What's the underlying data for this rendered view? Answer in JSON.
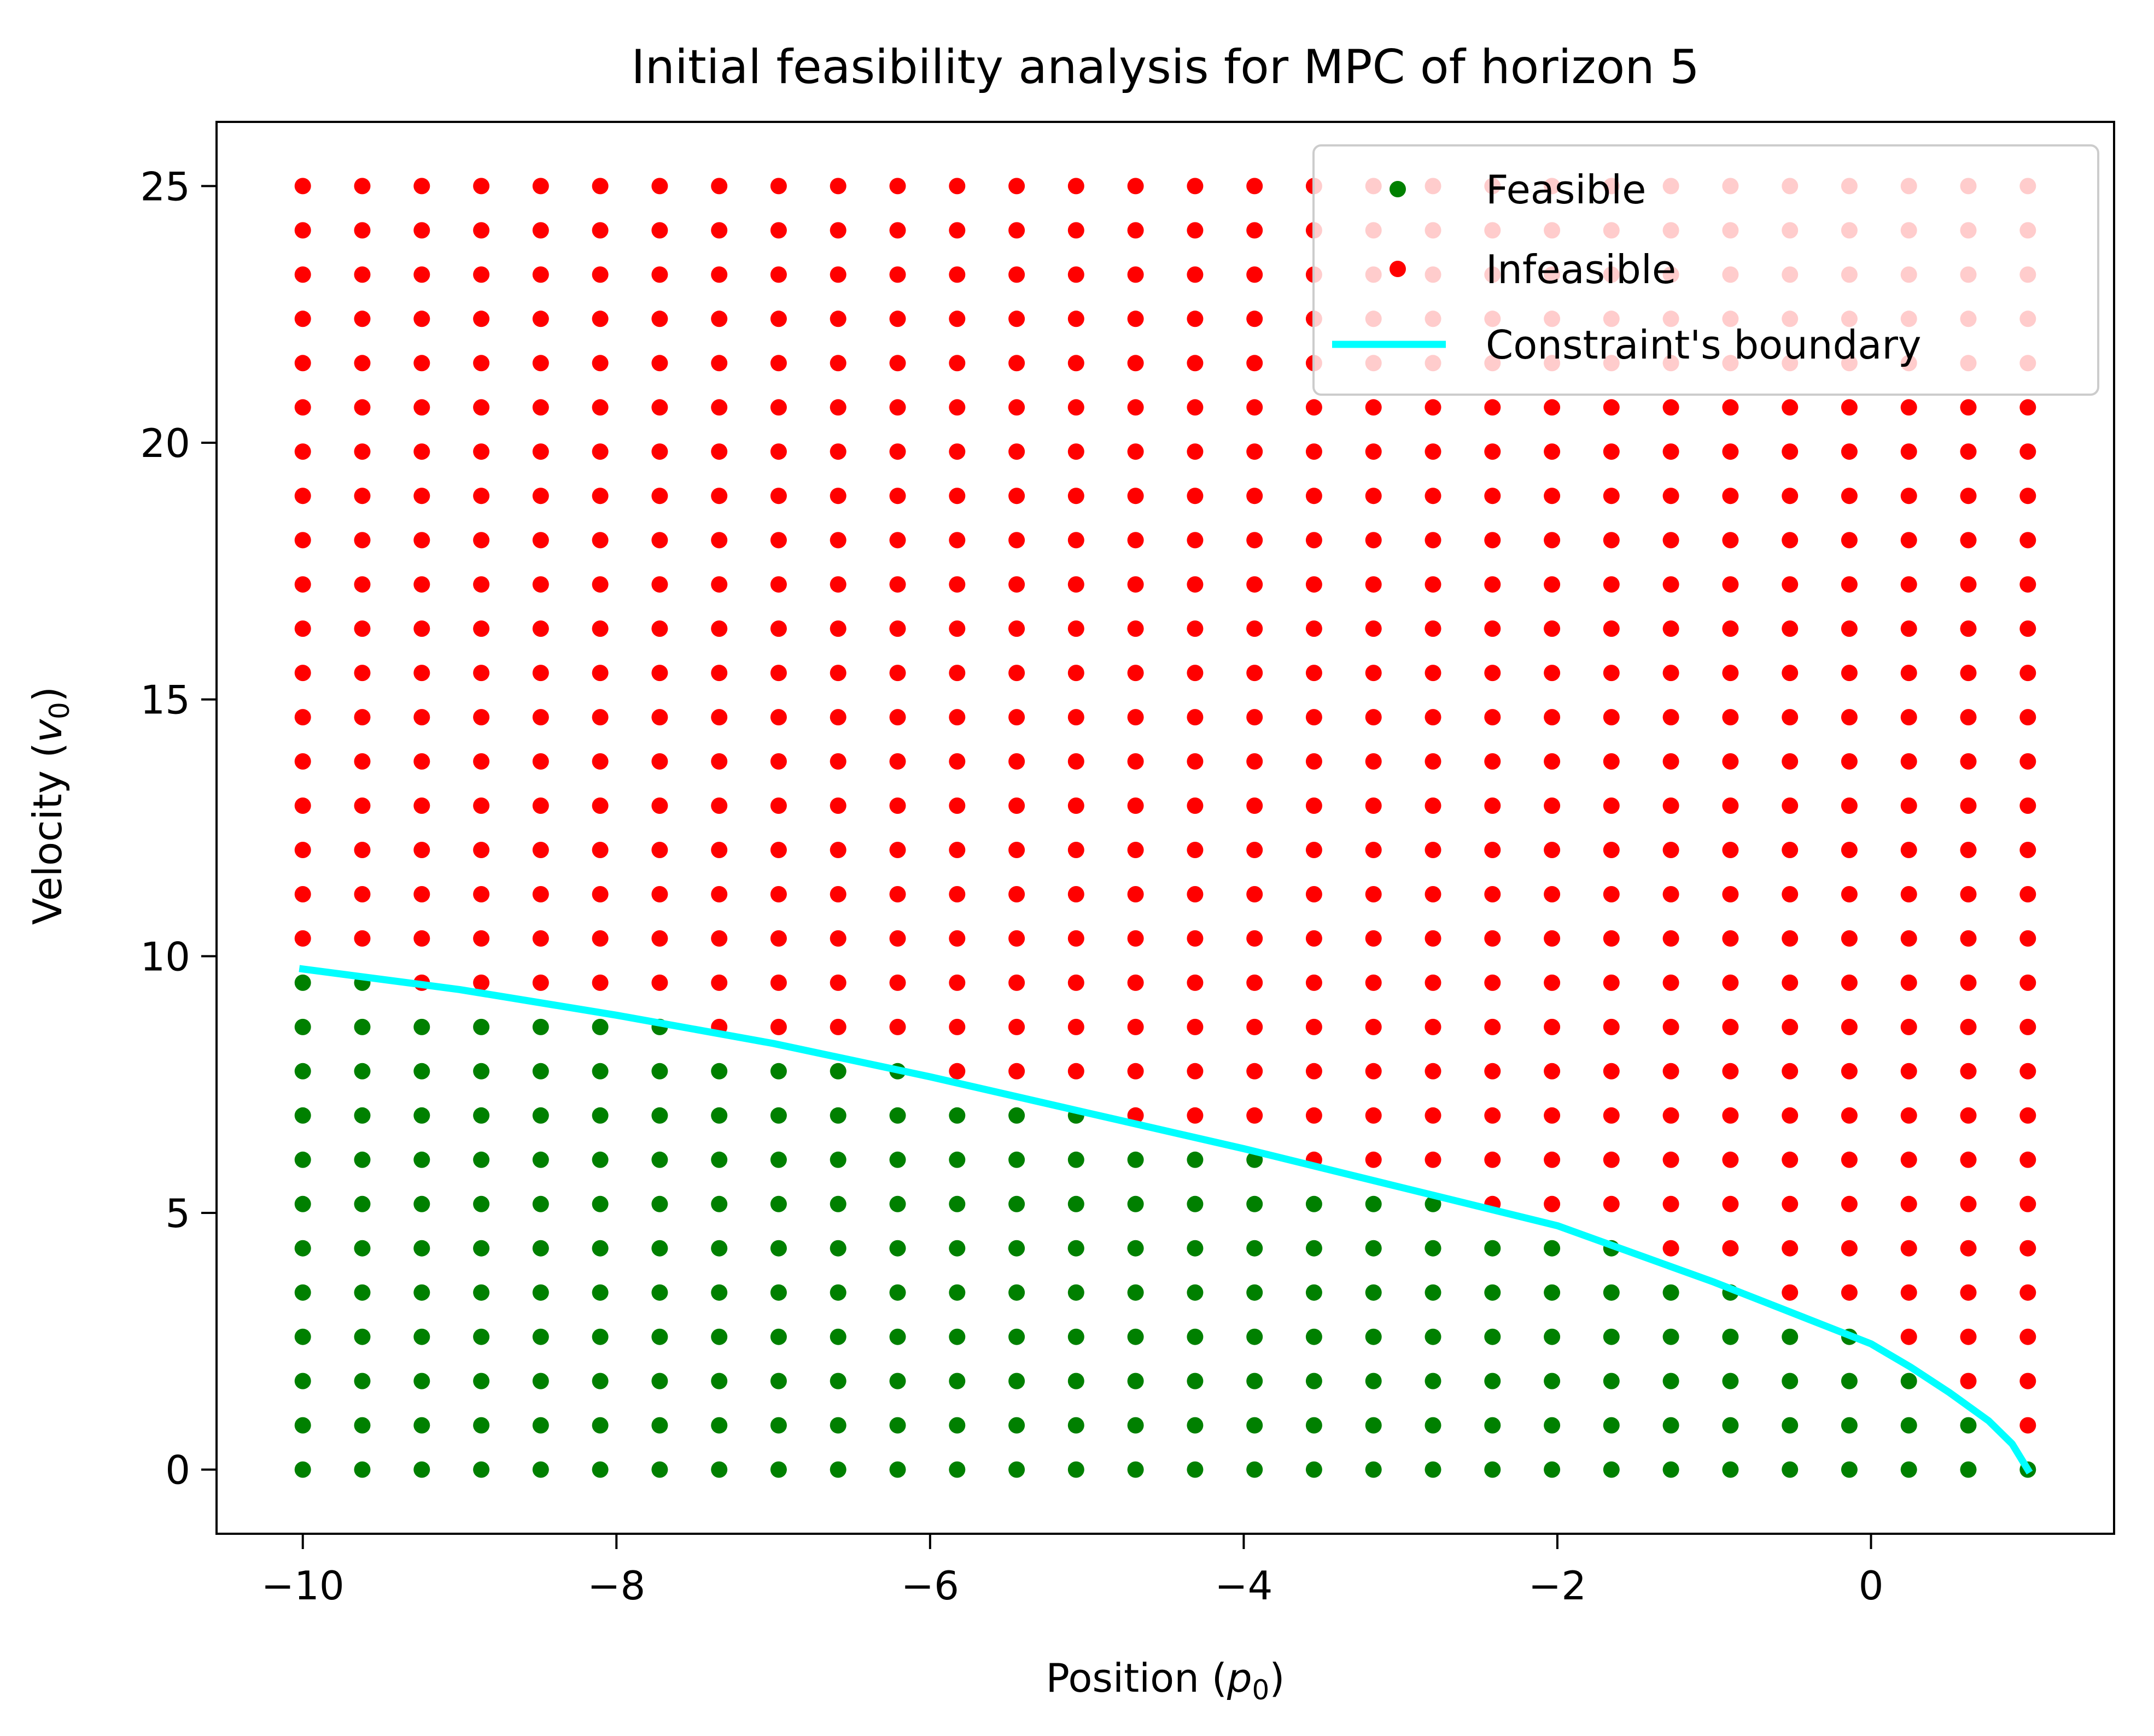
{
  "chart_data": {
    "type": "scatter",
    "title": "Initial feasibility analysis for MPC of horizon 5",
    "xlabel": "Position (p₀)",
    "xlabel_parts": [
      "Position (",
      "p",
      "0",
      ")"
    ],
    "ylabel": "Velocity (v₀)",
    "ylabel_parts": [
      "Velocity (",
      "v",
      "0",
      ")"
    ],
    "xlim": [
      -10.55,
      1.55
    ],
    "ylim": [
      -1.25,
      26.25
    ],
    "grid": false,
    "legend_position": "top-right",
    "xticks": [
      {
        "value": -10,
        "label": "−10"
      },
      {
        "value": -8,
        "label": "−8"
      },
      {
        "value": -6,
        "label": "−6"
      },
      {
        "value": -4,
        "label": "−4"
      },
      {
        "value": -2,
        "label": "−2"
      },
      {
        "value": 0,
        "label": "0"
      }
    ],
    "yticks": [
      {
        "value": 0,
        "label": "0"
      },
      {
        "value": 5,
        "label": "5"
      },
      {
        "value": 10,
        "label": "10"
      },
      {
        "value": 15,
        "label": "15"
      },
      {
        "value": 20,
        "label": "20"
      },
      {
        "value": 25,
        "label": "25"
      }
    ],
    "grid_points": {
      "x_start": -10,
      "x_end": 1,
      "x_count": 30,
      "y_start": 0,
      "y_end": 25,
      "y_count": 30
    },
    "series": [
      {
        "name": "Feasible",
        "kind": "scatter",
        "color": "#008000"
      },
      {
        "name": "Infeasible",
        "kind": "scatter",
        "color": "#ff0000"
      },
      {
        "name": "Constraint's boundary",
        "kind": "line",
        "color": "#00ffff",
        "points": [
          [
            -10,
            9.75
          ],
          [
            -9,
            9.35
          ],
          [
            -8,
            8.85
          ],
          [
            -7,
            8.3
          ],
          [
            -6,
            7.65
          ],
          [
            -5,
            6.95
          ],
          [
            -4,
            6.25
          ],
          [
            -3,
            5.5
          ],
          [
            -2,
            4.75
          ],
          [
            -1,
            3.65
          ],
          [
            -0.5,
            3.05
          ],
          [
            0,
            2.45
          ],
          [
            0.25,
            2.0
          ],
          [
            0.5,
            1.5
          ],
          [
            0.75,
            0.95
          ],
          [
            0.9,
            0.5
          ],
          [
            1,
            0
          ]
        ]
      }
    ]
  }
}
